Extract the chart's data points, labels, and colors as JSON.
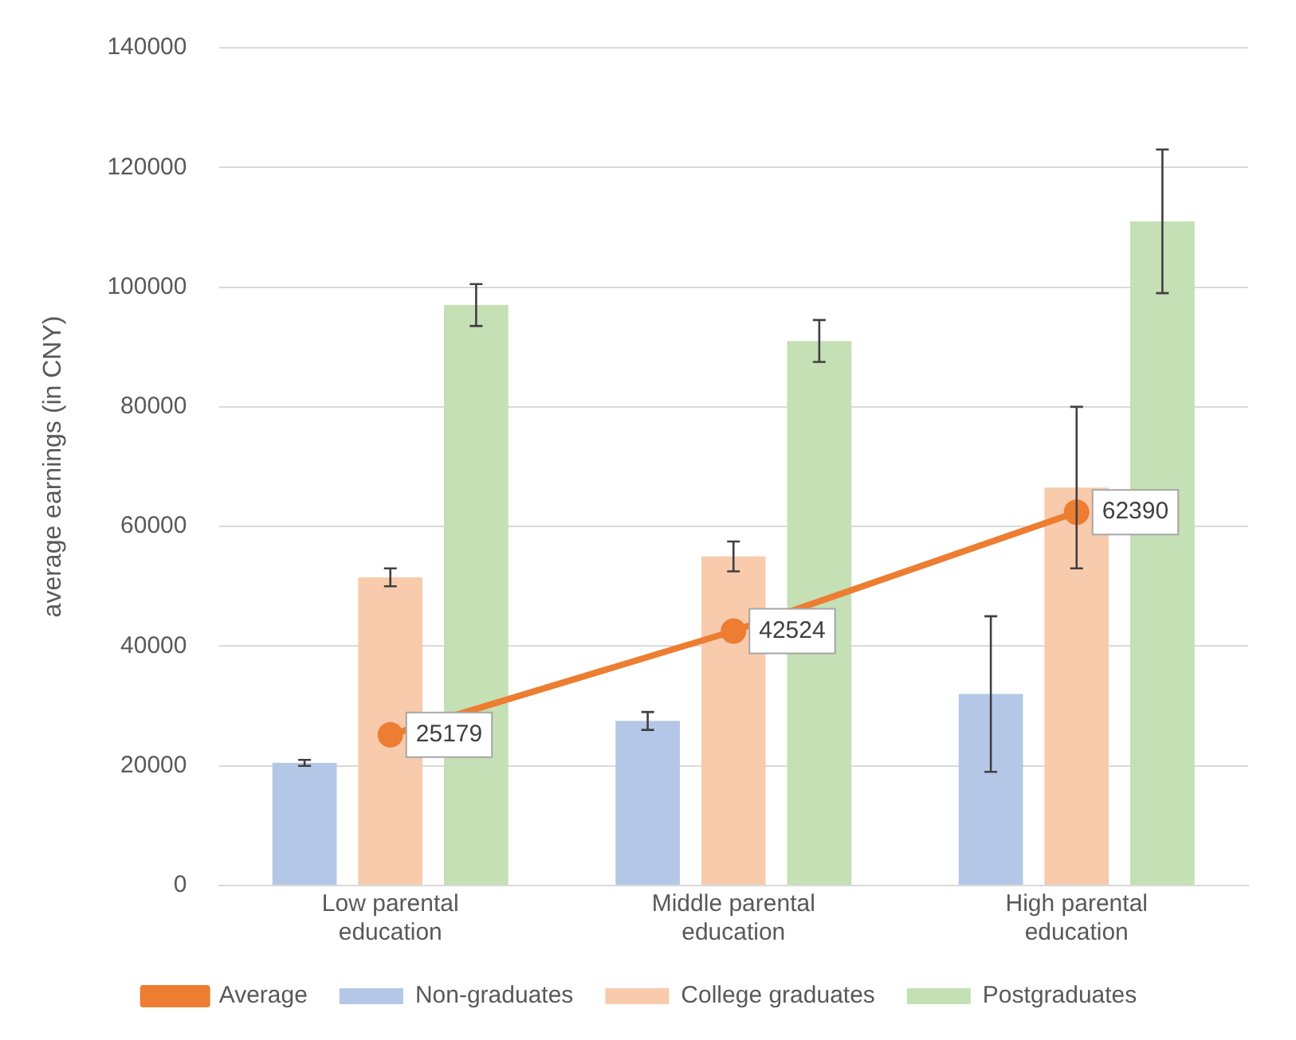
{
  "chart_data": {
    "type": "bar",
    "ylabel": "average earnings (in CNY)",
    "categories": [
      "Low parental education",
      "Middle parental education",
      "High parental education"
    ],
    "series": [
      {
        "name": "Non-graduates",
        "color": "#b4c7e7",
        "values": [
          20500,
          27500,
          32000
        ],
        "errors": [
          500,
          1500,
          13000
        ]
      },
      {
        "name": "College graduates",
        "color": "#f8cbad",
        "values": [
          51500,
          55000,
          66500
        ],
        "errors": [
          1500,
          2500,
          13500
        ]
      },
      {
        "name": "Postgraduates",
        "color": "#c5e0b4",
        "values": [
          97000,
          91000,
          111000
        ],
        "errors": [
          3500,
          3500,
          12000
        ]
      },
      {
        "name": "Average",
        "type": "line",
        "color": "#ed7d31",
        "values": [
          25179,
          42524,
          62390
        ],
        "value_labels": [
          "25179",
          "42524",
          "62390"
        ]
      }
    ],
    "ylim": [
      0,
      140000
    ],
    "yticks": [
      0,
      20000,
      40000,
      60000,
      80000,
      100000,
      120000,
      140000
    ],
    "grid": "y",
    "legend": "bottom",
    "marker": "circle"
  }
}
